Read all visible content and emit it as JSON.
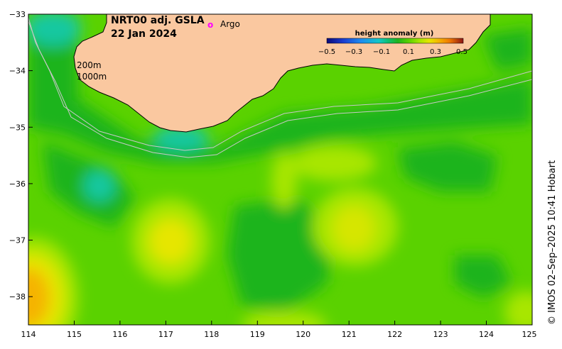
{
  "title": {
    "line1": "NRT00 adj. GSLA",
    "line2": "22 Jan 2024"
  },
  "legend": {
    "argo_symbol": "o",
    "argo_label": "Argo"
  },
  "isobaths": {
    "label_200": "200m",
    "label_1000": "1000m"
  },
  "colorbar": {
    "title": "height anomaly (m)",
    "ticks": [
      "−0.5",
      "−0.3",
      "−0.1",
      "0.1",
      "0.3",
      "0.5"
    ],
    "colors": [
      "#0a0a78",
      "#1a3cd0",
      "#1e8cf0",
      "#14c8c8",
      "#10c070",
      "#1eb41e",
      "#5ad200",
      "#a8e600",
      "#e6e600",
      "#f5b400",
      "#f07800",
      "#d23c14",
      "#8c1414"
    ]
  },
  "axes": {
    "x_ticks": [
      "114",
      "115",
      "116",
      "117",
      "118",
      "119",
      "120",
      "121",
      "122",
      "123",
      "124",
      "125"
    ],
    "y_ticks": [
      "−33",
      "−34",
      "−35",
      "−36",
      "−37",
      "−38"
    ]
  },
  "credit": "© IMOS 02–Sep–2025 10:41 Hobart",
  "colors": {
    "land": "#fac8a0",
    "argo": "#ff00ff"
  }
}
